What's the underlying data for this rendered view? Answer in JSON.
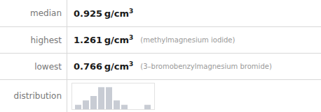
{
  "chart_data": {
    "type": "bar",
    "annotations": [
      {
        "label": "median",
        "value": "0.925 g/cm",
        "superscript": "3"
      },
      {
        "label": "highest",
        "value": "1.261 g/cm",
        "superscript": "3",
        "note": "(methylmagnesium iodide)"
      },
      {
        "label": "lowest",
        "value": "0.766 g/cm",
        "superscript": "3",
        "note": "(3–bromobenzylmagnesium bromide)"
      },
      {
        "label": "distribution"
      }
    ],
    "categories": [
      null,
      null,
      null,
      null,
      null,
      null,
      null,
      null,
      null,
      null
    ],
    "values": [
      1,
      2,
      3,
      5,
      5,
      2,
      1,
      null,
      null,
      1
    ],
    "color": "#c8ccd4",
    "ylim": [
      0,
      6
    ],
    "tick_labels": false,
    "grid": false
  }
}
